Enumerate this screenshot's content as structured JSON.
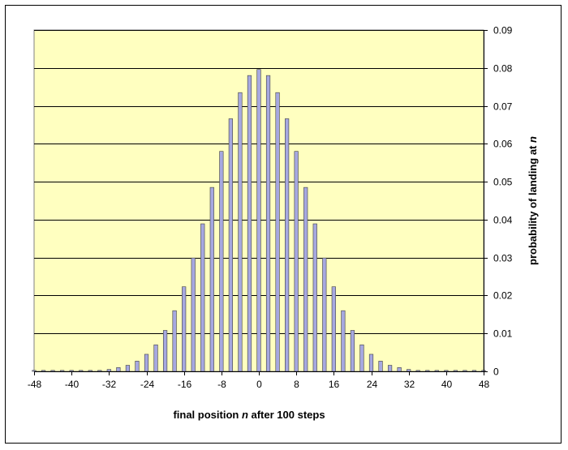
{
  "chart_data": {
    "type": "bar",
    "title": "",
    "xlabel": {
      "prefix": "final position ",
      "variable": "n",
      "suffix": " after 100 steps"
    },
    "ylabel": {
      "prefix": "probability of landing at ",
      "variable": "n"
    },
    "xlim": [
      -48,
      48
    ],
    "ylim": [
      0,
      0.09
    ],
    "xticks": [
      -48,
      -40,
      -32,
      -24,
      -16,
      -8,
      0,
      8,
      16,
      24,
      32,
      40,
      48
    ],
    "yticks": [
      "0",
      "0.01",
      "0.02",
      "0.03",
      "0.04",
      "0.05",
      "0.06",
      "0.07",
      "0.08",
      "0.09"
    ],
    "y_axis_side": "right",
    "grid": "horizontal",
    "legend": "none",
    "x": [
      -48,
      -46,
      -44,
      -42,
      -40,
      -38,
      -36,
      -34,
      -32,
      -30,
      -28,
      -26,
      -24,
      -22,
      -20,
      -18,
      -16,
      -14,
      -12,
      -10,
      -8,
      -6,
      -4,
      -2,
      0,
      2,
      4,
      6,
      8,
      10,
      12,
      14,
      16,
      18,
      20,
      22,
      24,
      26,
      28,
      30,
      32,
      34,
      36,
      38,
      40,
      42,
      44,
      46,
      48
    ],
    "values": [
      0.0,
      0.0,
      0.0,
      0.0,
      0.0,
      0.0,
      0.0001,
      0.0002,
      0.0005,
      0.001,
      0.0016,
      0.0027,
      0.0045,
      0.007,
      0.0108,
      0.016,
      0.0223,
      0.0299,
      0.0389,
      0.0485,
      0.058,
      0.0666,
      0.0735,
      0.078,
      0.0796,
      0.078,
      0.0735,
      0.0666,
      0.058,
      0.0485,
      0.0389,
      0.0299,
      0.0223,
      0.016,
      0.0108,
      0.007,
      0.0045,
      0.0027,
      0.0016,
      0.001,
      0.0005,
      0.0002,
      0.0001,
      0.0,
      0.0,
      0.0,
      0.0,
      0.0,
      0.0
    ],
    "colors": {
      "plot_background": "#ffffc0",
      "bar_fill": "#a6a8e0",
      "bar_stroke": "#404040",
      "gridline": "#000000",
      "axis": "#000000"
    }
  }
}
